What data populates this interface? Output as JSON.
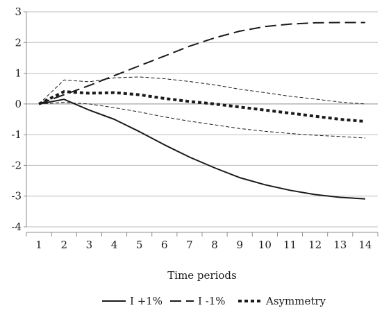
{
  "chart_data": {
    "type": "line",
    "xlabel": "Time periods",
    "ylabel": "",
    "x": [
      1,
      2,
      3,
      4,
      5,
      6,
      7,
      8,
      9,
      10,
      11,
      12,
      13,
      14
    ],
    "ylim": [
      -4,
      3
    ],
    "yticks": [
      3,
      2,
      1,
      0,
      -1,
      -2,
      -3,
      -4
    ],
    "grid": true,
    "legend": "bottom",
    "series": [
      {
        "name": "I +1%",
        "style": "solid",
        "color": "#1a1a1a",
        "values": [
          0,
          0.15,
          -0.2,
          -0.5,
          -0.9,
          -1.33,
          -1.73,
          -2.08,
          -2.4,
          -2.63,
          -2.81,
          -2.95,
          -3.04,
          -3.09
        ]
      },
      {
        "name": "I -1%",
        "style": "long-dash",
        "color": "#1a1a1a",
        "values": [
          0,
          0.3,
          0.6,
          0.92,
          1.24,
          1.56,
          1.88,
          2.15,
          2.37,
          2.52,
          2.6,
          2.64,
          2.65,
          2.65
        ]
      },
      {
        "name": "Asymmetry",
        "style": "dotted-bold",
        "color": "#1a1a1a",
        "values": [
          0,
          0.4,
          0.35,
          0.37,
          0.3,
          0.18,
          0.08,
          0.0,
          -0.1,
          -0.2,
          -0.3,
          -0.4,
          -0.5,
          -0.57
        ]
      },
      {
        "name": "",
        "style": "thin-dash",
        "color": "#1a1a1a",
        "values": [
          0,
          0.78,
          0.72,
          0.85,
          0.88,
          0.82,
          0.73,
          0.62,
          0.48,
          0.37,
          0.25,
          0.16,
          0.06,
          0.0
        ]
      },
      {
        "name": "",
        "style": "thin-dash",
        "color": "#1a1a1a",
        "values": [
          0,
          0.05,
          0.0,
          -0.12,
          -0.26,
          -0.42,
          -0.56,
          -0.68,
          -0.8,
          -0.89,
          -0.96,
          -1.02,
          -1.06,
          -1.11
        ]
      }
    ]
  }
}
